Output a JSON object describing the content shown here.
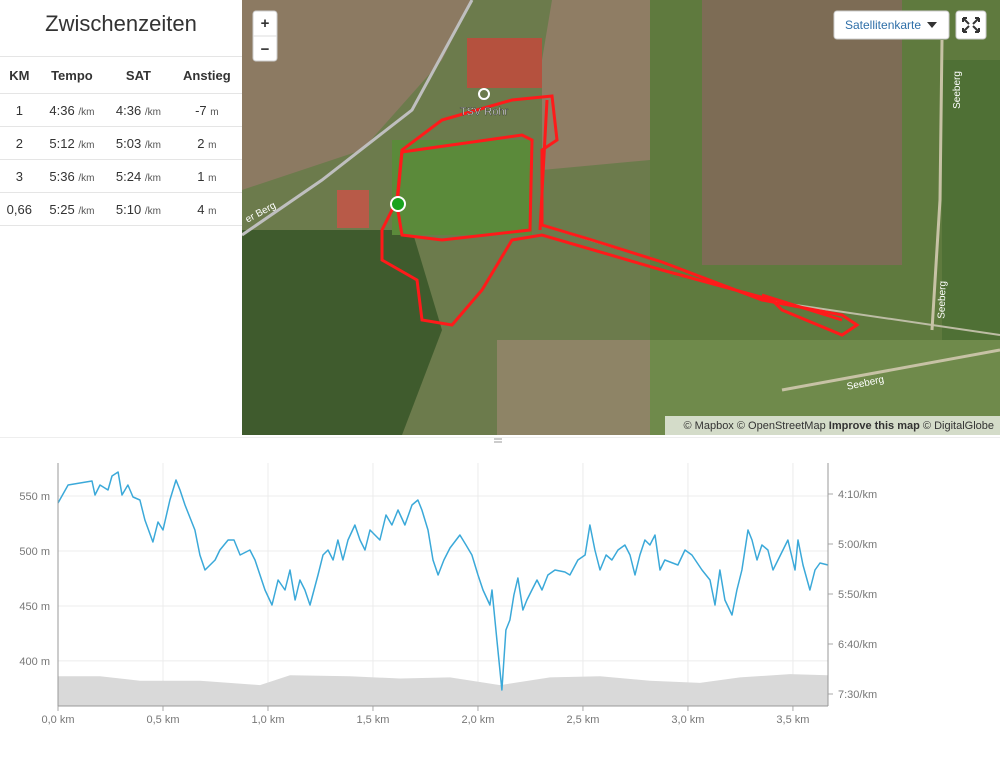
{
  "splits": {
    "title": "Zwischenzeiten",
    "headers": [
      "KM",
      "Tempo",
      "SAT",
      "Anstieg"
    ],
    "units": {
      "pace": "/km",
      "elev": "m"
    },
    "rows": [
      {
        "km": "1",
        "tempo": "4:36",
        "sat": "4:36",
        "anstieg": "-7"
      },
      {
        "km": "2",
        "tempo": "5:12",
        "sat": "5:03",
        "anstieg": "2"
      },
      {
        "km": "3",
        "tempo": "5:36",
        "sat": "5:24",
        "anstieg": "1"
      },
      {
        "km": "0,66",
        "tempo": "5:25",
        "sat": "5:10",
        "anstieg": "4"
      }
    ]
  },
  "map": {
    "zoom_in": "+",
    "zoom_out": "−",
    "layer_button": "Satellitenkarte",
    "labels": {
      "club": "TSV Rohr",
      "road_left": "er Berg",
      "road_right_top": "Seeberg",
      "road_right_mid": "Seeberg",
      "road_bottom": "Seeberg"
    },
    "attribution": {
      "mapbox": "© Mapbox",
      "osm": "© OpenStreetMap",
      "improve": "Improve this map",
      "imagery": "© DigitalGlobe"
    }
  },
  "chart_data": {
    "type": "line",
    "grid": true,
    "xlim": [
      0,
      3.667
    ],
    "xticks": [
      {
        "value": 0,
        "label": "0,0 km"
      },
      {
        "value": 0.5,
        "label": "0,5 km"
      },
      {
        "value": 1,
        "label": "1,0 km"
      },
      {
        "value": 1.5,
        "label": "1,5 km"
      },
      {
        "value": 2,
        "label": "2,0 km"
      },
      {
        "value": 2.5,
        "label": "2,5 km"
      },
      {
        "value": 3,
        "label": "3,0 km"
      },
      {
        "value": 3.5,
        "label": "3,5 km"
      }
    ],
    "ylim": [
      359,
      580
    ],
    "yticks": [
      {
        "value": 400,
        "label": "400 m"
      },
      {
        "value": 450,
        "label": "450 m"
      },
      {
        "value": 500,
        "label": "500 m"
      },
      {
        "value": 550,
        "label": "550 m"
      }
    ],
    "y2lim": [
      462,
      219
    ],
    "y2ticks": [
      {
        "value": 250,
        "label": "4:10/km"
      },
      {
        "value": 300,
        "label": "5:00/km"
      },
      {
        "value": 350,
        "label": "5:50/km"
      },
      {
        "value": 400,
        "label": "6:40/km"
      },
      {
        "value": 450,
        "label": "7:30/km"
      }
    ],
    "series": [
      {
        "kind": "area",
        "color": "#d9d9d9",
        "x": [
          0,
          0.2,
          0.39,
          0.676,
          0.962,
          1.105,
          1.39,
          1.629,
          1.867,
          2.105,
          2.343,
          2.581,
          2.819,
          3.057,
          3.248,
          3.486,
          3.667
        ],
        "values": [
          386,
          386,
          382,
          382,
          378,
          387,
          386,
          384,
          385,
          378,
          385,
          386,
          382,
          380,
          385,
          388,
          387
        ]
      },
      {
        "kind": "line",
        "axis": "y2",
        "color": "#3ba9d9",
        "x": [
          0,
          0.048,
          0.105,
          0.162,
          0.176,
          0.2,
          0.238,
          0.257,
          0.286,
          0.305,
          0.333,
          0.357,
          0.39,
          0.414,
          0.452,
          0.476,
          0.5,
          0.533,
          0.562,
          0.581,
          0.605,
          0.652,
          0.676,
          0.7,
          0.748,
          0.771,
          0.81,
          0.838,
          0.867,
          0.914,
          0.938,
          0.986,
          1.019,
          1.048,
          1.081,
          1.105,
          1.129,
          1.152,
          1.176,
          1.2,
          1.238,
          1.262,
          1.286,
          1.31,
          1.333,
          1.357,
          1.381,
          1.414,
          1.438,
          1.462,
          1.486,
          1.533,
          1.562,
          1.59,
          1.619,
          1.652,
          1.686,
          1.714,
          1.733,
          1.762,
          1.786,
          1.81,
          1.838,
          1.867,
          1.914,
          1.943,
          1.971,
          2,
          2.024,
          2.057,
          2.067,
          2.09,
          2.114,
          2.133,
          2.152,
          2.171,
          2.19,
          2.214,
          2.233,
          2.257,
          2.281,
          2.305,
          2.333,
          2.367,
          2.414,
          2.438,
          2.476,
          2.51,
          2.533,
          2.557,
          2.581,
          2.61,
          2.638,
          2.667,
          2.7,
          2.724,
          2.748,
          2.771,
          2.795,
          2.819,
          2.843,
          2.867,
          2.89,
          2.952,
          2.986,
          3.019,
          3.067,
          3.105,
          3.129,
          3.152,
          3.176,
          3.21,
          3.233,
          3.257,
          3.286,
          3.305,
          3.329,
          3.352,
          3.381,
          3.405,
          3.429,
          3.476,
          3.51,
          3.524,
          3.548,
          3.581,
          3.605,
          3.629,
          3.667
        ],
        "values": [
          259,
          241,
          239,
          237,
          251,
          241,
          246,
          232,
          228,
          251,
          241,
          253,
          256,
          276,
          298,
          278,
          286,
          256,
          236,
          246,
          261,
          286,
          311,
          326,
          316,
          306,
          296,
          296,
          311,
          306,
          316,
          346,
          361,
          336,
          346,
          326,
          356,
          336,
          346,
          361,
          331,
          311,
          306,
          316,
          296,
          316,
          296,
          281,
          296,
          306,
          286,
          296,
          271,
          281,
          266,
          281,
          261,
          256,
          266,
          286,
          316,
          331,
          316,
          304,
          291,
          301,
          311,
          331,
          346,
          361,
          346,
          396,
          446,
          386,
          376,
          351,
          334,
          366,
          356,
          346,
          336,
          346,
          331,
          326,
          328,
          331,
          316,
          311,
          281,
          306,
          326,
          311,
          316,
          306,
          301,
          311,
          331,
          311,
          296,
          301,
          291,
          326,
          316,
          321,
          306,
          311,
          326,
          336,
          361,
          326,
          356,
          371,
          346,
          326,
          286,
          296,
          316,
          301,
          306,
          326,
          316,
          296,
          326,
          296,
          321,
          346,
          326,
          319,
          321
        ]
      }
    ]
  }
}
